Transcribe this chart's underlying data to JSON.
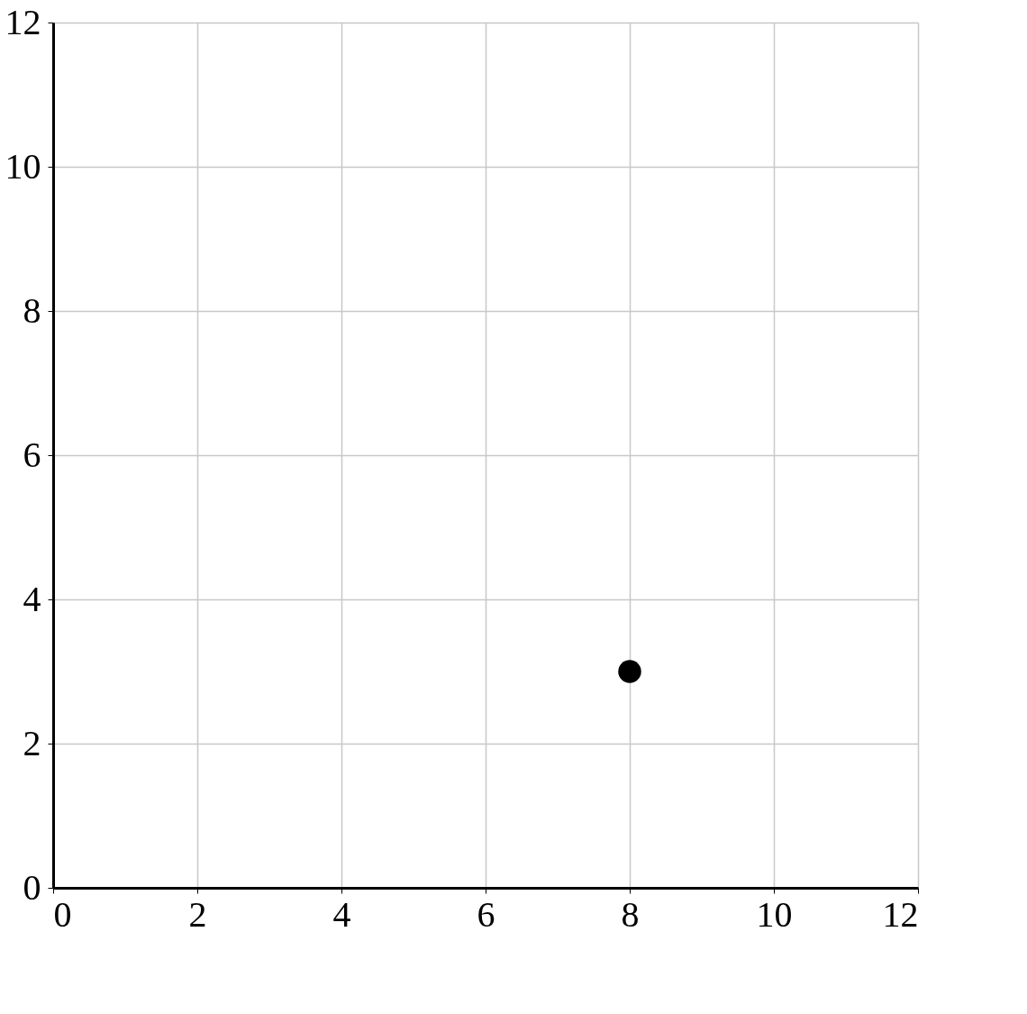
{
  "chart_data": {
    "type": "scatter",
    "x": [
      8
    ],
    "series": [
      {
        "color": "#000000",
        "values": [
          3
        ]
      }
    ],
    "xlim": [
      0,
      12
    ],
    "ylim": [
      0,
      12
    ],
    "xticks": [
      0,
      2,
      4,
      6,
      8,
      10,
      12
    ],
    "yticks": [
      0,
      2,
      4,
      6,
      8,
      10,
      12
    ],
    "grid": true,
    "marker": "circle"
  }
}
